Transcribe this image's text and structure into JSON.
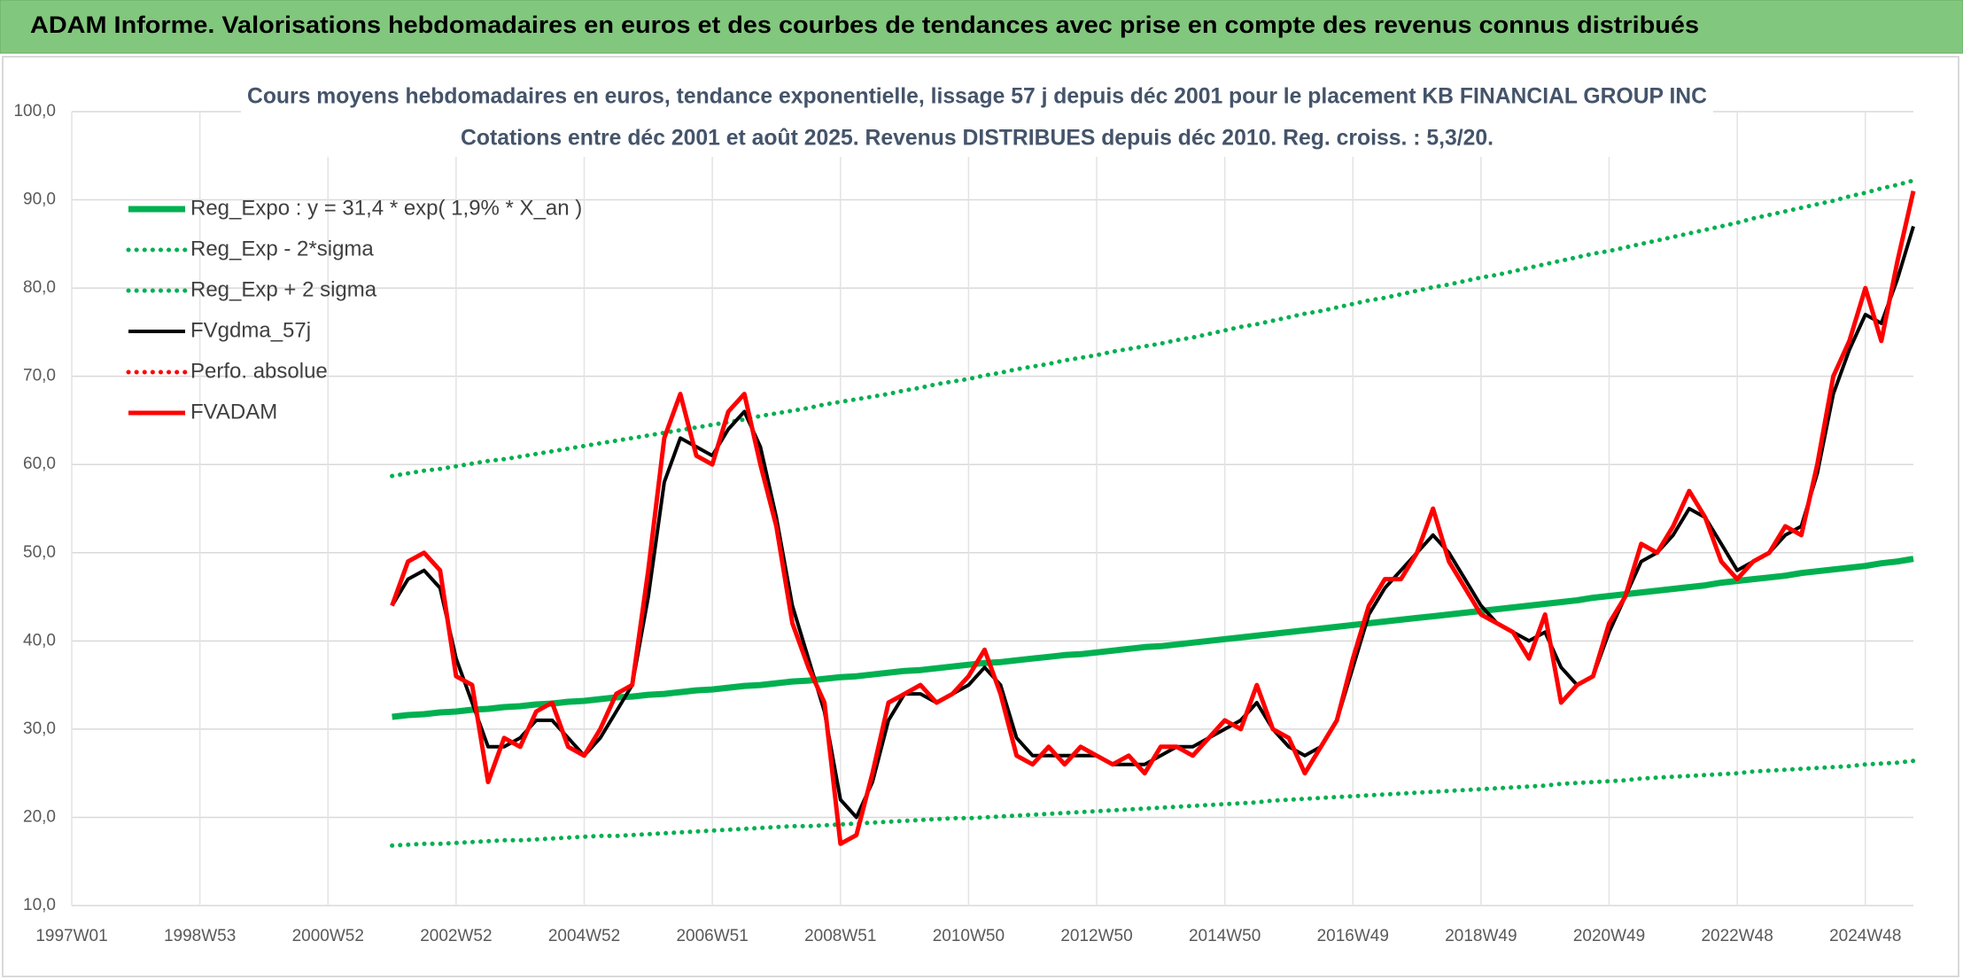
{
  "chart_data": {
    "type": "line",
    "banner": "ADAM Informe. Valorisations hebdomadaires en euros et des courbes de tendances avec prise en compte des revenus connus distribués",
    "title": "Cours moyens hebdomadaires en euros, tendance exponentielle, lissage 57 j depuis déc 2001 pour le placement KB FINANCIAL GROUP INC",
    "subtitle": "Cotations entre déc 2001 et août 2025. Revenus DISTRIBUES depuis déc 2010. Reg. croiss. : 5,3/20.",
    "categories": [
      "1997W01",
      null,
      null,
      null,
      null,
      null,
      null,
      null,
      "1998W53",
      null,
      null,
      null,
      null,
      null,
      null,
      null,
      "2000W52",
      null,
      null,
      null,
      null,
      null,
      null,
      null,
      "2002W52",
      null,
      null,
      null,
      null,
      null,
      null,
      null,
      "2004W52",
      null,
      null,
      null,
      null,
      null,
      null,
      null,
      "2006W51",
      null,
      null,
      null,
      null,
      null,
      null,
      null,
      "2008W51",
      null,
      null,
      null,
      null,
      null,
      null,
      null,
      "2010W50",
      null,
      null,
      null,
      null,
      null,
      null,
      null,
      "2012W50",
      null,
      null,
      null,
      null,
      null,
      null,
      null,
      "2014W50",
      null,
      null,
      null,
      null,
      null,
      null,
      null,
      "2016W49",
      null,
      null,
      null,
      null,
      null,
      null,
      null,
      "2018W49",
      null,
      null,
      null,
      null,
      null,
      null,
      null,
      "2020W49",
      null,
      null,
      null,
      null,
      null,
      null,
      null,
      "2022W48",
      null,
      null,
      null,
      null,
      null,
      null,
      null,
      "2024W48",
      null,
      null,
      null
    ],
    "ylim": [
      10,
      100
    ],
    "yticks": [
      {
        "value": 10,
        "label": "10,0"
      },
      {
        "value": 20,
        "label": "20,0"
      },
      {
        "value": 30,
        "label": "30,0"
      },
      {
        "value": 40,
        "label": "40,0"
      },
      {
        "value": 50,
        "label": "50,0"
      },
      {
        "value": 60,
        "label": "60,0"
      },
      {
        "value": 70,
        "label": "70,0"
      },
      {
        "value": 80,
        "label": "80,0"
      },
      {
        "value": 90,
        "label": "90,0"
      },
      {
        "value": 100,
        "label": "100,0"
      }
    ],
    "grid": true,
    "legend": "upper left",
    "series": [
      {
        "name": "Reg_Expo : y = 31,4 * exp( 1,9% *  X_an )",
        "color": "#00b050",
        "style": "solid",
        "values": [
          null,
          null,
          null,
          null,
          null,
          null,
          null,
          null,
          null,
          null,
          null,
          null,
          null,
          null,
          null,
          null,
          null,
          null,
          null,
          null,
          31.4,
          31.6,
          31.7,
          31.9,
          32.0,
          32.2,
          32.3,
          32.5,
          32.6,
          32.8,
          32.9,
          33.1,
          33.2,
          33.4,
          33.6,
          33.7,
          33.9,
          34.0,
          34.2,
          34.4,
          34.5,
          34.7,
          34.9,
          35.0,
          35.2,
          35.4,
          35.5,
          35.7,
          35.9,
          36.0,
          36.2,
          36.4,
          36.6,
          36.7,
          36.9,
          37.1,
          37.3,
          37.5,
          37.6,
          37.8,
          38.0,
          38.2,
          38.4,
          38.5,
          38.7,
          38.9,
          39.1,
          39.3,
          39.4,
          39.6,
          39.8,
          40.0,
          40.2,
          40.4,
          40.6,
          40.8,
          41.0,
          41.2,
          41.4,
          41.6,
          41.8,
          42.0,
          42.2,
          42.4,
          42.6,
          42.8,
          43.0,
          43.2,
          43.4,
          43.6,
          43.8,
          44.0,
          44.2,
          44.4,
          44.6,
          44.9,
          45.1,
          45.3,
          45.5,
          45.7,
          45.9,
          46.1,
          46.3,
          46.6,
          46.8,
          47.0,
          47.2,
          47.4,
          47.7,
          47.9,
          48.1,
          48.3,
          48.5,
          48.8,
          49.0,
          49.3
        ]
      },
      {
        "name": "Reg_Exp - 2*sigma",
        "color": "#00b050",
        "style": "dotted",
        "values": [
          null,
          null,
          null,
          null,
          null,
          null,
          null,
          null,
          null,
          null,
          null,
          null,
          null,
          null,
          null,
          null,
          null,
          null,
          null,
          null,
          16.8,
          16.9,
          17.0,
          17.0,
          17.1,
          17.2,
          17.3,
          17.4,
          17.4,
          17.5,
          17.6,
          17.7,
          17.8,
          17.9,
          17.9,
          18.0,
          18.1,
          18.2,
          18.3,
          18.4,
          18.5,
          18.6,
          18.7,
          18.8,
          18.9,
          19.0,
          19.0,
          19.1,
          19.2,
          19.3,
          19.4,
          19.5,
          19.6,
          19.7,
          19.8,
          19.9,
          19.9,
          20.0,
          20.1,
          20.2,
          20.3,
          20.4,
          20.5,
          20.6,
          20.7,
          20.8,
          20.9,
          21.0,
          21.1,
          21.2,
          21.3,
          21.4,
          21.5,
          21.6,
          21.7,
          21.9,
          22.0,
          22.1,
          22.2,
          22.3,
          22.4,
          22.5,
          22.6,
          22.7,
          22.8,
          22.9,
          23.0,
          23.1,
          23.2,
          23.3,
          23.4,
          23.5,
          23.6,
          23.8,
          23.9,
          24.0,
          24.1,
          24.2,
          24.4,
          24.5,
          24.6,
          24.7,
          24.8,
          24.9,
          25.0,
          25.2,
          25.3,
          25.4,
          25.5,
          25.6,
          25.7,
          25.8,
          26.0,
          26.1,
          26.2,
          26.4
        ]
      },
      {
        "name": "Reg_Exp + 2 sigma",
        "color": "#00b050",
        "style": "dotted",
        "values": [
          null,
          null,
          null,
          null,
          null,
          null,
          null,
          null,
          null,
          null,
          null,
          null,
          null,
          null,
          null,
          null,
          null,
          null,
          null,
          null,
          58.7,
          59.0,
          59.3,
          59.5,
          59.8,
          60.1,
          60.4,
          60.6,
          60.9,
          61.2,
          61.5,
          61.8,
          62.1,
          62.4,
          62.7,
          63.0,
          63.3,
          63.6,
          63.9,
          64.2,
          64.5,
          64.8,
          65.1,
          65.5,
          65.8,
          66.1,
          66.4,
          66.8,
          67.1,
          67.4,
          67.7,
          68.0,
          68.4,
          68.7,
          69.1,
          69.4,
          69.7,
          70.1,
          70.4,
          70.8,
          71.1,
          71.4,
          71.8,
          72.1,
          72.4,
          72.8,
          73.1,
          73.4,
          73.7,
          74.1,
          74.4,
          74.8,
          75.2,
          75.6,
          75.9,
          76.3,
          76.7,
          77.1,
          77.4,
          77.8,
          78.2,
          78.6,
          78.9,
          79.3,
          79.7,
          80.1,
          80.4,
          80.8,
          81.2,
          81.5,
          81.9,
          82.3,
          82.7,
          83.1,
          83.5,
          83.9,
          84.2,
          84.6,
          85.0,
          85.4,
          85.8,
          86.2,
          86.6,
          87.0,
          87.4,
          87.9,
          88.3,
          88.7,
          89.1,
          89.5,
          89.9,
          90.4,
          90.8,
          91.3,
          91.7,
          92.2
        ]
      },
      {
        "name": "FVgdma_57j",
        "color": "#000000",
        "style": "solid",
        "values": [
          null,
          null,
          null,
          null,
          null,
          null,
          null,
          null,
          null,
          null,
          null,
          null,
          null,
          null,
          null,
          null,
          null,
          null,
          null,
          null,
          44,
          47,
          48,
          46,
          38,
          33,
          28,
          28,
          29,
          31,
          31,
          29,
          27,
          29,
          32,
          35,
          45,
          58,
          63,
          62,
          61,
          64,
          66,
          62,
          54,
          44,
          38,
          32,
          22,
          20,
          24,
          31,
          34,
          34,
          33,
          34,
          35,
          37,
          35,
          29,
          27,
          27,
          27,
          27,
          27,
          26,
          26,
          26,
          27,
          28,
          28,
          29,
          30,
          31,
          33,
          30,
          28,
          27,
          28,
          31,
          37,
          43,
          46,
          48,
          50,
          52,
          50,
          47,
          44,
          42,
          41,
          40,
          41,
          37,
          35,
          36,
          41,
          45,
          49,
          50,
          52,
          55,
          54,
          51,
          48,
          49,
          50,
          52,
          53,
          59,
          68,
          73,
          77,
          76,
          81,
          87
        ]
      },
      {
        "name": "Perfo. absolue",
        "color": "#ff0000",
        "style": "dotted"
      },
      {
        "name": "FVADAM",
        "color": "#ff0000",
        "style": "solid",
        "values": [
          null,
          null,
          null,
          null,
          null,
          null,
          null,
          null,
          null,
          null,
          null,
          null,
          null,
          null,
          null,
          null,
          null,
          null,
          null,
          null,
          44,
          49,
          50,
          48,
          36,
          35,
          24,
          29,
          28,
          32,
          33,
          28,
          27,
          30,
          34,
          35,
          48,
          63,
          68,
          61,
          60,
          66,
          68,
          60,
          53,
          42,
          37,
          33,
          17,
          18,
          25,
          33,
          34,
          35,
          33,
          34,
          36,
          39,
          34,
          27,
          26,
          28,
          26,
          28,
          27,
          26,
          27,
          25,
          28,
          28,
          27,
          29,
          31,
          30,
          35,
          30,
          29,
          25,
          28,
          31,
          38,
          44,
          47,
          47,
          50,
          55,
          49,
          46,
          43,
          42,
          41,
          38,
          43,
          33,
          35,
          36,
          42,
          45,
          51,
          50,
          53,
          57,
          54,
          49,
          47,
          49,
          50,
          53,
          52,
          60,
          70,
          74,
          80,
          74,
          83,
          91
        ]
      }
    ]
  }
}
